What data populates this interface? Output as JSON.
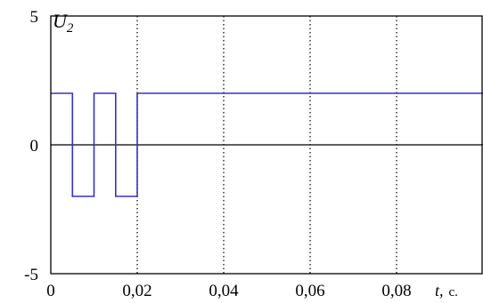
{
  "chart_data": {
    "type": "line",
    "title": "",
    "ylabel": "U",
    "ylabel_sub": "2",
    "xlabel_var": "t,",
    "xlabel_unit": "с.",
    "xlim": [
      0,
      0.1
    ],
    "ylim": [
      -5,
      5
    ],
    "x_ticks": [
      {
        "value": 0,
        "label": "0"
      },
      {
        "value": 0.02,
        "label": "0,02"
      },
      {
        "value": 0.04,
        "label": "0,04"
      },
      {
        "value": 0.06,
        "label": "0,06"
      },
      {
        "value": 0.08,
        "label": "0,08"
      }
    ],
    "y_ticks": [
      {
        "value": 5,
        "label": "5"
      },
      {
        "value": 0,
        "label": "0"
      },
      {
        "value": -5,
        "label": "-5"
      }
    ],
    "grid": {
      "x": true,
      "y": false
    },
    "zero_line": true,
    "series": [
      {
        "color": "#3232c8",
        "step": true,
        "x": [
          0,
          0.005,
          0.005,
          0.01,
          0.01,
          0.015,
          0.015,
          0.02,
          0.02,
          0.1
        ],
        "y": [
          2,
          2,
          -2,
          -2,
          2,
          2,
          -2,
          -2,
          2,
          2
        ]
      }
    ]
  }
}
